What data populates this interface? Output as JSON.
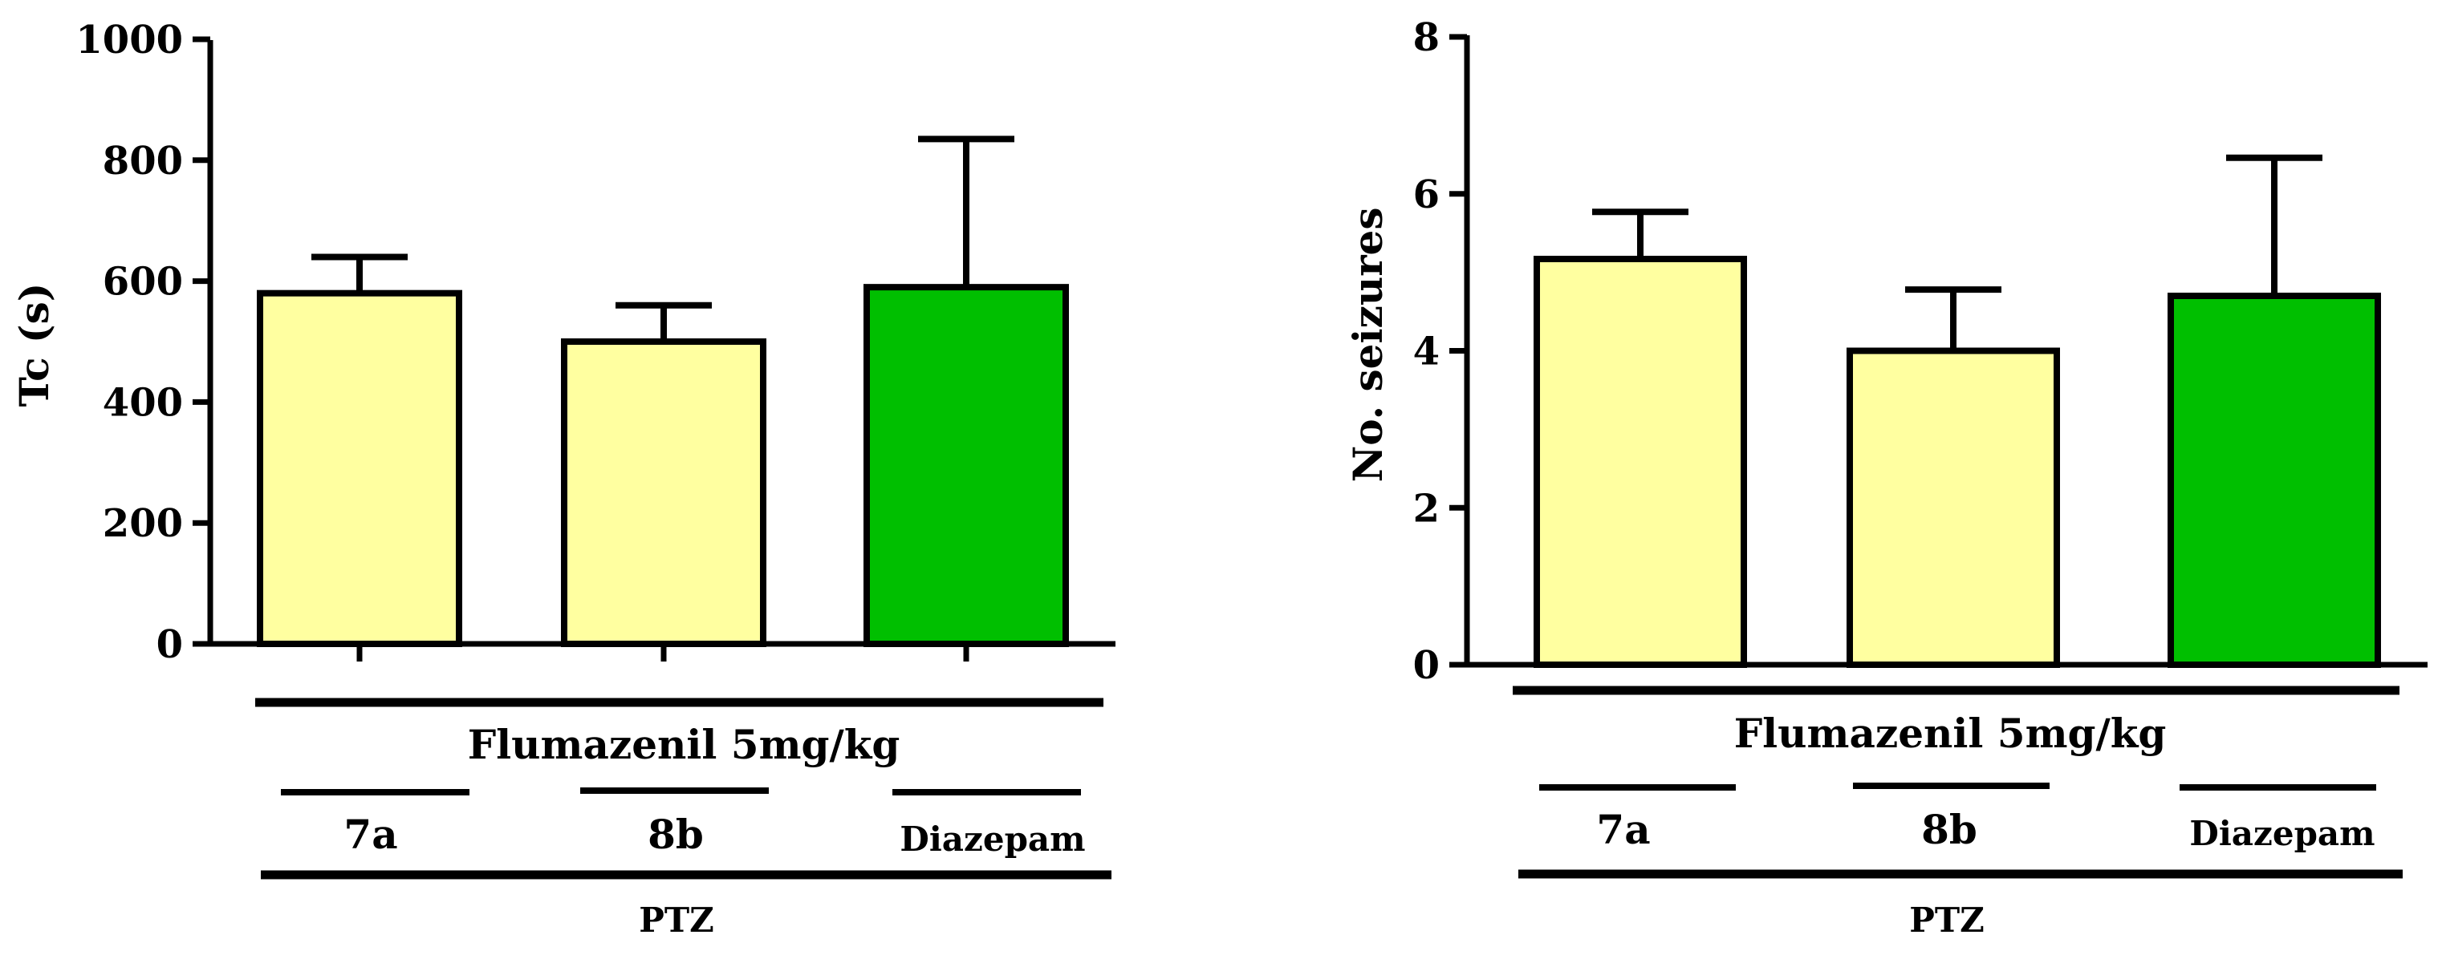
{
  "chart_data": [
    {
      "type": "bar",
      "title": "",
      "xlabel": "",
      "ylabel": "Tc (s)",
      "ylim": [
        0,
        1000
      ],
      "yticks": [
        "0",
        "200",
        "400",
        "600",
        "800",
        "1000"
      ],
      "categories": [
        "7a",
        "8b",
        "Diazepam"
      ],
      "values": [
        580,
        500,
        590
      ],
      "errors": [
        60,
        60,
        245
      ],
      "colors": [
        "#FFFFA0",
        "#FFFFA0",
        "#00BF00"
      ],
      "group_labels": {
        "flumazenil": "Flumazenil 5mg/kg",
        "ptz": "PTZ"
      }
    },
    {
      "type": "bar",
      "title": "",
      "xlabel": "",
      "ylabel": "No. seizures",
      "ylim": [
        0,
        8
      ],
      "yticks": [
        "0",
        "2",
        "4",
        "6",
        "8"
      ],
      "categories": [
        "7a",
        "8b",
        "Diazepam"
      ],
      "values": [
        5.17,
        4.0,
        4.7
      ],
      "errors": [
        0.6,
        0.78,
        1.76
      ],
      "colors": [
        "#FFFFA0",
        "#FFFFA0",
        "#00BF00"
      ],
      "group_labels": {
        "flumazenil": "Flumazenil 5mg/kg",
        "ptz": "PTZ"
      }
    }
  ]
}
